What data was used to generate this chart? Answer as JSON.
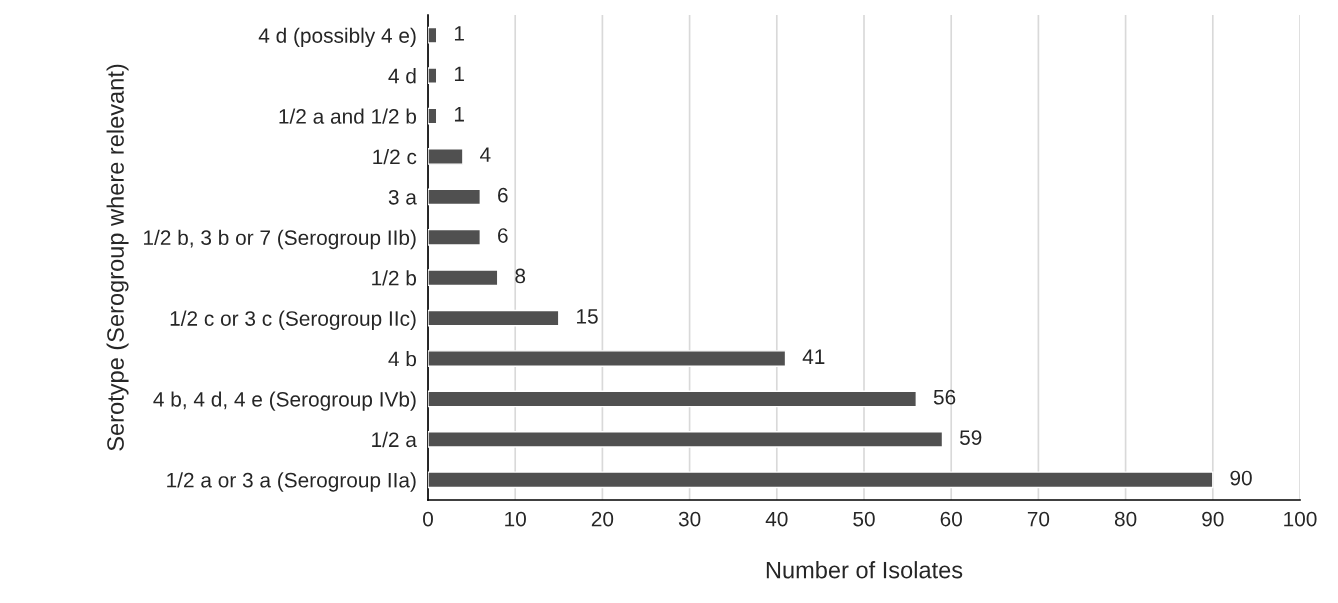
{
  "chart_data": {
    "type": "bar",
    "orientation": "horizontal",
    "xlabel": "Number of Isolates",
    "ylabel": "Serotype (Serogroup where relevant)",
    "categories": [
      "4 d (possibly 4 e)",
      "4 d",
      "1/2 a and 1/2 b",
      "1/2 c",
      "3 a",
      "1/2 b, 3 b or 7 (Serogroup IIb)",
      "1/2 b",
      "1/2 c or 3 c (Serogroup IIc)",
      "4 b",
      "4 b, 4 d, 4 e (Serogroup IVb)",
      "1/2 a",
      "1/2 a or 3 a (Serogroup IIa)"
    ],
    "values": [
      1,
      1,
      1,
      4,
      6,
      6,
      8,
      15,
      41,
      56,
      59,
      90
    ],
    "color": "#505050",
    "xlim": [
      0,
      100
    ],
    "xticks": [
      0,
      10,
      20,
      30,
      40,
      50,
      60,
      70,
      80,
      90,
      100
    ],
    "grid": "x",
    "data_labels": true
  }
}
